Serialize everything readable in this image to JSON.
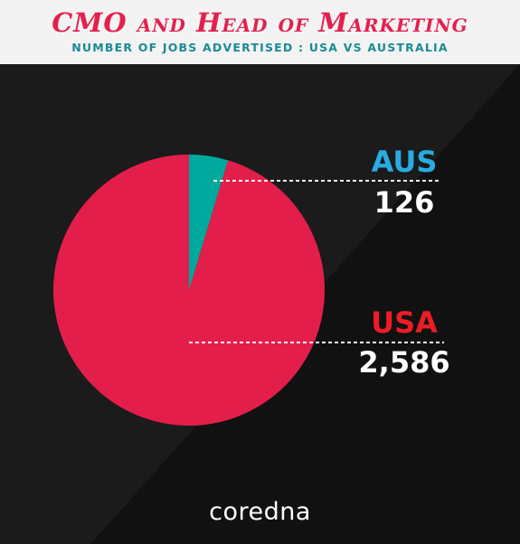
{
  "header": {
    "title": "CMO and Head of Marketing",
    "subtitle": "NUMBER OF JOBS ADVERTISED : USA VS AUSTRALIA"
  },
  "colors": {
    "title": "#e3204e",
    "subtitle": "#1b8a95",
    "aus": "#00a99d",
    "usa": "#e31e4a",
    "aus_label": "#29abe2",
    "usa_label": "#ed1c24",
    "value_text": "#ffffff",
    "background": "#1b1b1c",
    "background_diagonal": "#111112"
  },
  "chart_data": {
    "type": "pie",
    "title": "CMO and Head of Marketing",
    "subtitle": "NUMBER OF JOBS ADVERTISED : USA VS AUSTRALIA",
    "categories": [
      "AUS",
      "USA"
    ],
    "values": [
      126,
      2586
    ],
    "value_labels": [
      "126",
      "2,586"
    ]
  },
  "footer": {
    "brand": "coredna"
  }
}
